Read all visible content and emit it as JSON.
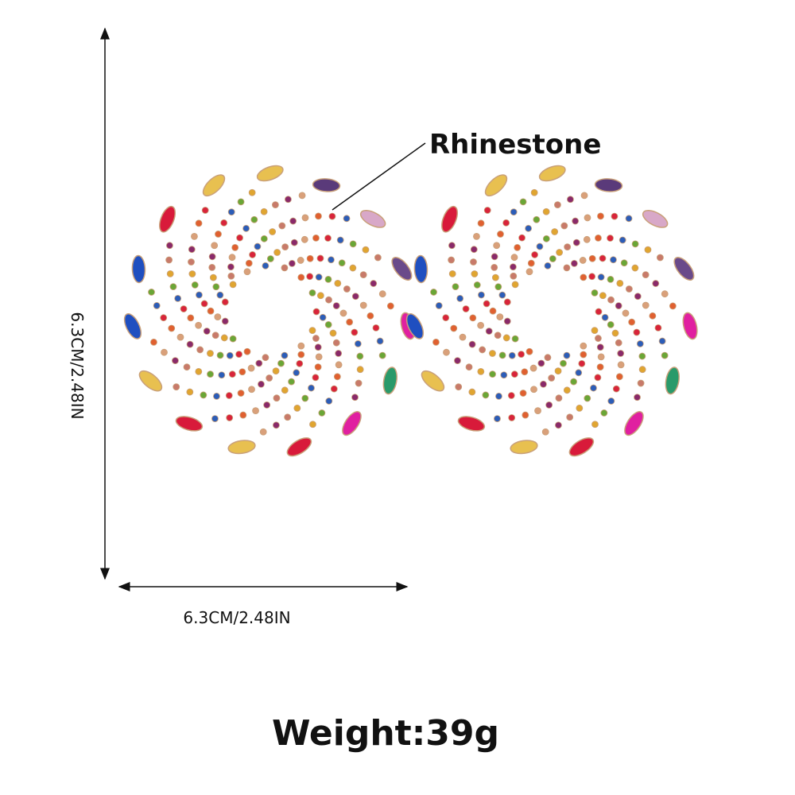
{
  "callout": "Rhinestone",
  "dimensions": {
    "height": "6.3CM/2.48IN",
    "width": "6.3CM/2.48IN"
  },
  "weight": "Weight:39g"
}
